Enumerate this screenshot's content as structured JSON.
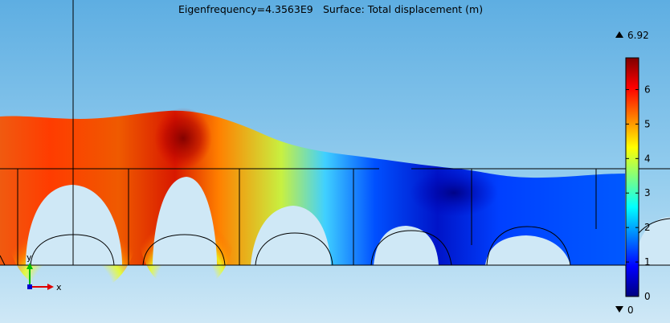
{
  "title": {
    "eigenfrequency": "Eigenfrequency=4.3563E9",
    "surface": "Surface: Total displacement (m)"
  },
  "colorbar": {
    "max_label": "6.92",
    "min_label": "0",
    "max_value": 6.92,
    "min_value": 0,
    "ticks": [
      "0",
      "1",
      "2",
      "3",
      "4",
      "5",
      "6"
    ],
    "max_marker_icon": "triangle-up-icon",
    "min_marker_icon": "triangle-down-icon"
  },
  "axes": {
    "x_label": "x",
    "y_label": "y",
    "x_color": "#e00000",
    "y_color": "#00c000",
    "origin_color": "#0000d0"
  },
  "colors": {
    "background_top": "#5eaee2",
    "background_bottom": "#cfe8f6",
    "rainbow": [
      "#00007f",
      "#0000ff",
      "#007fff",
      "#00ffff",
      "#7fff7f",
      "#ffff00",
      "#ff7f00",
      "#ff0000",
      "#7f0000"
    ]
  }
}
